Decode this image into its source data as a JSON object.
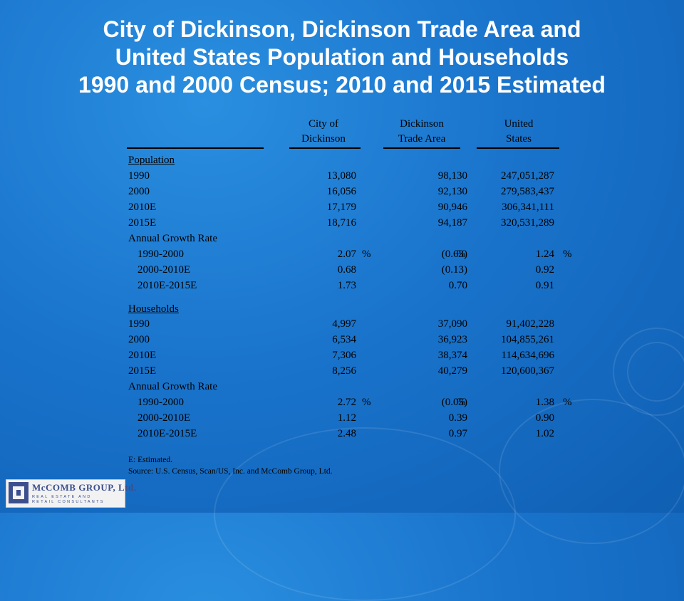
{
  "title": {
    "line1": "City of Dickinson, Dickinson Trade Area and",
    "line2": "United States Population and Households",
    "line3": "1990 and 2000 Census; 2010 and 2015 Estimated"
  },
  "columns": [
    {
      "line1": "City of",
      "line2": "Dickinson"
    },
    {
      "line1": "Dickinson",
      "line2": "Trade Area"
    },
    {
      "line1": "United",
      "line2": "States"
    }
  ],
  "population": {
    "heading": "Population",
    "rows": [
      {
        "label": "1990",
        "city": "13,080",
        "trade": "98,130",
        "us": "247,051,287"
      },
      {
        "label": "2000",
        "city": "16,056",
        "trade": "92,130",
        "us": "279,583,437"
      },
      {
        "label": "2010E",
        "city": "17,179",
        "trade": "90,946",
        "us": "306,341,111"
      },
      {
        "label": "2015E",
        "city": "18,716",
        "trade": "94,187",
        "us": "320,531,289"
      }
    ],
    "growth_label": "Annual Growth Rate",
    "growth": [
      {
        "label": "1990-2000",
        "city": "2.07",
        "trade": "(0.63)",
        "us": "1.24",
        "pct": "%"
      },
      {
        "label": "2000-2010E",
        "city": "0.68",
        "trade": "(0.13)",
        "us": "0.92",
        "pct": ""
      },
      {
        "label": "2010E-2015E",
        "city": "1.73",
        "trade": "0.70",
        "us": "0.91",
        "pct": ""
      }
    ]
  },
  "households": {
    "heading": "Households",
    "rows": [
      {
        "label": "1990",
        "city": "4,997",
        "trade": "37,090",
        "us": "91,402,228"
      },
      {
        "label": "2000",
        "city": "6,534",
        "trade": "36,923",
        "us": "104,855,261"
      },
      {
        "label": "2010E",
        "city": "7,306",
        "trade": "38,374",
        "us": "114,634,696"
      },
      {
        "label": "2015E",
        "city": "8,256",
        "trade": "40,279",
        "us": "120,600,367"
      }
    ],
    "growth_label": "Annual Growth Rate",
    "growth": [
      {
        "label": "1990-2000",
        "city": "2.72",
        "trade": "(0.05)",
        "us": "1.38",
        "pct": "%"
      },
      {
        "label": "2000-2010E",
        "city": "1.12",
        "trade": "0.39",
        "us": "0.90",
        "pct": ""
      },
      {
        "label": "2010E-2015E",
        "city": "2.48",
        "trade": "0.97",
        "us": "1.02",
        "pct": ""
      }
    ]
  },
  "notes": {
    "estimated": "E: Estimated.",
    "source": "Source: U.S. Census, Scan/US, Inc. and McComb Group, Ltd."
  },
  "logo": {
    "name": "McCOMB GROUP, Ltd.",
    "tagline1": "REAL ESTATE AND",
    "tagline2": "RETAIL CONSULTANTS"
  }
}
